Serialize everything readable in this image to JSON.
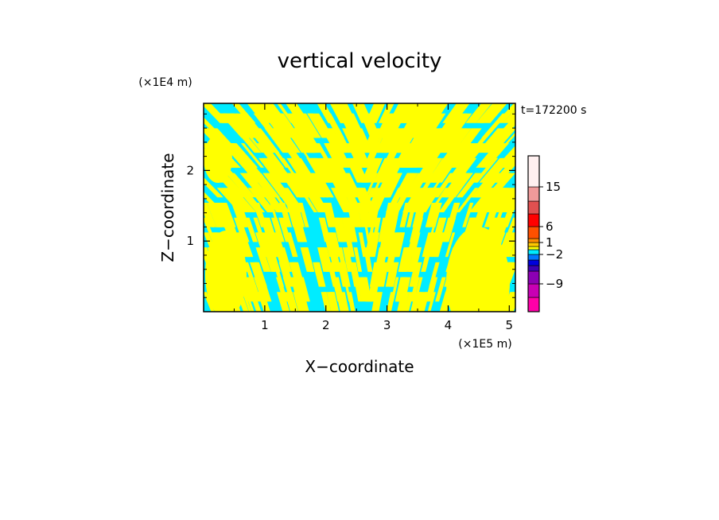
{
  "chart_data": {
    "type": "heatmap",
    "title": "vertical velocity",
    "time_label": "t=172200 s",
    "xlabel": "X−coordinate",
    "ylabel": "Z−coordinate",
    "x_unit": "(×1E5 m)",
    "y_unit": "(×1E4 m)",
    "xlim": [
      0,
      5.1
    ],
    "ylim": [
      0,
      2.95
    ],
    "x_ticks": [
      {
        "value": 1,
        "label": "1"
      },
      {
        "value": 2,
        "label": "2"
      },
      {
        "value": 3,
        "label": "3"
      },
      {
        "value": 4,
        "label": "4"
      },
      {
        "value": 5,
        "label": "5"
      }
    ],
    "y_ticks": [
      {
        "value": 1,
        "label": "1"
      },
      {
        "value": 2,
        "label": "2"
      }
    ],
    "field_colors": {
      "negative": "#00ecff",
      "positive": "#ffff00"
    },
    "colorbar": {
      "levels": [
        {
          "color": "#ff00a8"
        },
        {
          "color": "#c800b4"
        },
        {
          "color": "#8c00b4"
        },
        {
          "color": "#3c00b4"
        },
        {
          "color": "#0000dc"
        },
        {
          "color": "#0078ff"
        },
        {
          "color": "#00ecff"
        },
        {
          "color": "#ffff00"
        },
        {
          "color": "#ffc800"
        },
        {
          "color": "#ff8c00"
        },
        {
          "color": "#ff5000"
        },
        {
          "color": "#ff0000"
        },
        {
          "color": "#e05050"
        },
        {
          "color": "#f09a9a"
        },
        {
          "color": "#fff0f0"
        }
      ],
      "tick_labels": [
        {
          "label": "−9",
          "level_index": 1
        },
        {
          "label": "−2",
          "level_index": 5
        },
        {
          "label": "1",
          "level_index": 8
        },
        {
          "label": "6",
          "level_index": 10
        },
        {
          "label": "15",
          "level_index": 13
        }
      ]
    }
  }
}
